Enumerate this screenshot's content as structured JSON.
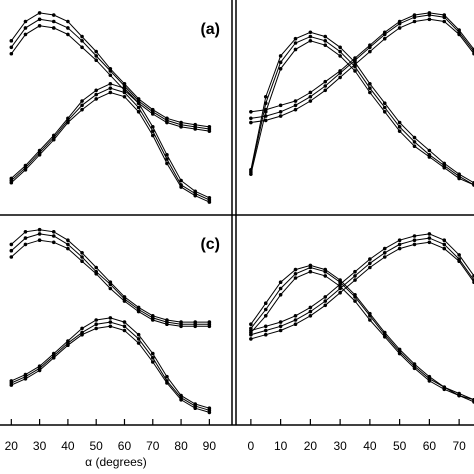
{
  "chart_data": [
    {
      "type": "line",
      "label": "(a)",
      "color": "#000000",
      "xlim": [
        16,
        98
      ],
      "ylim": [
        0,
        1
      ],
      "x": [
        20,
        25,
        30,
        35,
        40,
        45,
        50,
        55,
        60,
        65,
        70,
        75,
        80,
        85,
        90
      ],
      "series": [
        {
          "values": [
            0.81,
            0.9,
            0.94,
            0.93,
            0.9,
            0.83,
            0.76,
            0.68,
            0.61,
            0.54,
            0.49,
            0.45,
            0.43,
            0.42,
            0.41
          ]
        },
        {
          "values": [
            0.78,
            0.87,
            0.91,
            0.9,
            0.87,
            0.81,
            0.74,
            0.67,
            0.6,
            0.53,
            0.48,
            0.44,
            0.42,
            0.41,
            0.4
          ]
        },
        {
          "values": [
            0.75,
            0.84,
            0.88,
            0.87,
            0.84,
            0.78,
            0.72,
            0.65,
            0.58,
            0.52,
            0.47,
            0.43,
            0.41,
            0.4,
            0.39
          ]
        },
        {
          "values": [
            0.17,
            0.23,
            0.3,
            0.37,
            0.45,
            0.53,
            0.58,
            0.61,
            0.59,
            0.52,
            0.41,
            0.28,
            0.16,
            0.11,
            0.08
          ]
        },
        {
          "values": [
            0.16,
            0.22,
            0.29,
            0.36,
            0.44,
            0.51,
            0.56,
            0.59,
            0.57,
            0.5,
            0.39,
            0.26,
            0.14,
            0.1,
            0.07
          ]
        },
        {
          "values": [
            0.15,
            0.21,
            0.28,
            0.35,
            0.43,
            0.49,
            0.54,
            0.57,
            0.55,
            0.48,
            0.37,
            0.24,
            0.13,
            0.09,
            0.06
          ]
        }
      ]
    },
    {
      "type": "line",
      "color": "#000000",
      "xlim": [
        -5,
        75
      ],
      "ylim": [
        0,
        1
      ],
      "x": [
        0,
        5,
        10,
        15,
        20,
        25,
        30,
        35,
        40,
        45,
        50,
        55,
        60,
        65,
        70,
        75
      ],
      "series": [
        {
          "values": [
            0.21,
            0.55,
            0.74,
            0.82,
            0.85,
            0.83,
            0.78,
            0.71,
            0.61,
            0.52,
            0.43,
            0.36,
            0.3,
            0.24,
            0.19,
            0.15
          ]
        },
        {
          "values": [
            0.2,
            0.52,
            0.71,
            0.8,
            0.83,
            0.81,
            0.76,
            0.69,
            0.59,
            0.5,
            0.41,
            0.34,
            0.28,
            0.23,
            0.18,
            0.14
          ]
        },
        {
          "values": [
            0.19,
            0.48,
            0.68,
            0.77,
            0.81,
            0.79,
            0.74,
            0.67,
            0.57,
            0.48,
            0.39,
            0.32,
            0.27,
            0.22,
            0.17,
            0.14
          ]
        },
        {
          "values": [
            0.48,
            0.49,
            0.51,
            0.53,
            0.57,
            0.62,
            0.67,
            0.73,
            0.79,
            0.85,
            0.9,
            0.93,
            0.94,
            0.93,
            0.86,
            0.77
          ]
        },
        {
          "values": [
            0.45,
            0.46,
            0.48,
            0.51,
            0.55,
            0.6,
            0.66,
            0.72,
            0.78,
            0.84,
            0.89,
            0.92,
            0.93,
            0.92,
            0.85,
            0.76
          ]
        },
        {
          "values": [
            0.43,
            0.44,
            0.46,
            0.49,
            0.53,
            0.58,
            0.64,
            0.7,
            0.76,
            0.82,
            0.87,
            0.9,
            0.91,
            0.9,
            0.84,
            0.75
          ]
        }
      ]
    },
    {
      "type": "line",
      "label": "(c)",
      "xlabel": "α (degrees)",
      "color": "#000000",
      "xlim": [
        16,
        98
      ],
      "ylim": [
        0,
        1
      ],
      "xticks": [
        20,
        30,
        40,
        50,
        60,
        70,
        80,
        90
      ],
      "x": [
        20,
        25,
        30,
        35,
        40,
        45,
        50,
        55,
        60,
        65,
        70,
        75,
        80,
        85,
        90
      ],
      "series": [
        {
          "values": [
            0.86,
            0.92,
            0.93,
            0.92,
            0.88,
            0.82,
            0.75,
            0.68,
            0.61,
            0.56,
            0.52,
            0.5,
            0.49,
            0.49,
            0.49
          ]
        },
        {
          "values": [
            0.83,
            0.89,
            0.91,
            0.9,
            0.86,
            0.8,
            0.73,
            0.67,
            0.6,
            0.55,
            0.51,
            0.49,
            0.48,
            0.48,
            0.48
          ]
        },
        {
          "values": [
            0.8,
            0.86,
            0.88,
            0.87,
            0.84,
            0.78,
            0.72,
            0.65,
            0.59,
            0.54,
            0.5,
            0.48,
            0.47,
            0.47,
            0.47
          ]
        },
        {
          "values": [
            0.21,
            0.24,
            0.28,
            0.34,
            0.4,
            0.46,
            0.5,
            0.51,
            0.49,
            0.43,
            0.34,
            0.23,
            0.14,
            0.1,
            0.08
          ]
        },
        {
          "values": [
            0.2,
            0.23,
            0.27,
            0.33,
            0.39,
            0.44,
            0.48,
            0.49,
            0.47,
            0.41,
            0.32,
            0.21,
            0.13,
            0.09,
            0.07
          ]
        },
        {
          "values": [
            0.19,
            0.22,
            0.26,
            0.32,
            0.38,
            0.43,
            0.46,
            0.47,
            0.45,
            0.39,
            0.3,
            0.2,
            0.12,
            0.08,
            0.06
          ]
        }
      ]
    },
    {
      "type": "line",
      "color": "#000000",
      "xlim": [
        -5,
        75
      ],
      "ylim": [
        0,
        1
      ],
      "xticks": [
        0,
        10,
        20,
        30,
        40,
        50,
        60,
        70
      ],
      "x": [
        0,
        5,
        10,
        15,
        20,
        25,
        30,
        35,
        40,
        45,
        50,
        55,
        60,
        65,
        70,
        75
      ],
      "series": [
        {
          "values": [
            0.48,
            0.58,
            0.68,
            0.74,
            0.76,
            0.74,
            0.69,
            0.62,
            0.53,
            0.44,
            0.36,
            0.29,
            0.23,
            0.18,
            0.15,
            0.12
          ]
        },
        {
          "values": [
            0.46,
            0.55,
            0.65,
            0.72,
            0.75,
            0.73,
            0.68,
            0.61,
            0.52,
            0.43,
            0.35,
            0.28,
            0.22,
            0.18,
            0.14,
            0.12
          ]
        },
        {
          "values": [
            0.44,
            0.52,
            0.62,
            0.7,
            0.73,
            0.71,
            0.66,
            0.59,
            0.5,
            0.42,
            0.34,
            0.27,
            0.21,
            0.17,
            0.14,
            0.11
          ]
        },
        {
          "values": [
            0.45,
            0.47,
            0.49,
            0.52,
            0.56,
            0.61,
            0.67,
            0.73,
            0.79,
            0.84,
            0.88,
            0.9,
            0.91,
            0.88,
            0.81,
            0.71
          ]
        },
        {
          "values": [
            0.43,
            0.45,
            0.47,
            0.5,
            0.54,
            0.59,
            0.65,
            0.71,
            0.77,
            0.82,
            0.86,
            0.88,
            0.89,
            0.86,
            0.79,
            0.69
          ]
        },
        {
          "values": [
            0.41,
            0.43,
            0.45,
            0.48,
            0.52,
            0.57,
            0.63,
            0.69,
            0.75,
            0.8,
            0.84,
            0.86,
            0.87,
            0.84,
            0.78,
            0.68
          ]
        }
      ]
    }
  ]
}
